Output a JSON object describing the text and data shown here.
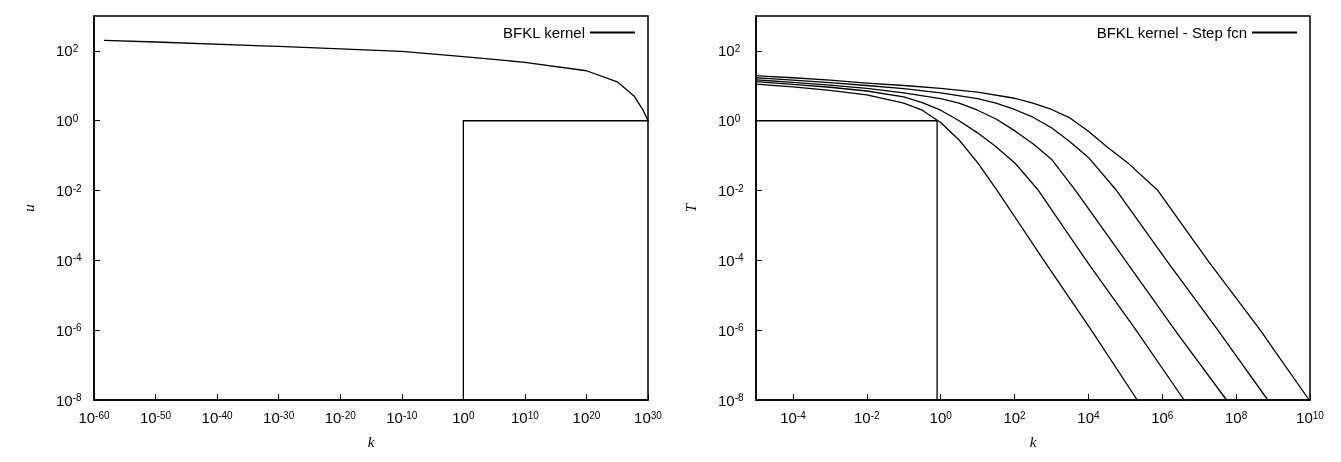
{
  "chart_data": [
    {
      "type": "line",
      "xlabel": "k",
      "ylabel": "u",
      "log": "xy",
      "legend": "top right",
      "marker": "none",
      "line_style": "solid",
      "xlim": [
        1e-60,
        1e+30
      ],
      "ylim": [
        1e-08,
        1000
      ],
      "xticks": [
        {
          "value": 1e-60,
          "label": "10$^{-60}$"
        },
        {
          "value": 1e-50,
          "label": "10$^{-50}$"
        },
        {
          "value": 1e-40,
          "label": "10$^{-40}$"
        },
        {
          "value": 1e-30,
          "label": "10$^{-30}$"
        },
        {
          "value": 1e-20,
          "label": "10$^{-20}$"
        },
        {
          "value": 1e-10,
          "label": "10$^{-10}$"
        },
        {
          "value": 1,
          "label": "10$^{0}$"
        },
        {
          "value": 10000000000.0,
          "label": "10$^{10}$"
        },
        {
          "value": 1e+20,
          "label": "10$^{20}$"
        },
        {
          "value": 1e+30,
          "label": "10$^{30}$"
        }
      ],
      "yticks": [
        {
          "value": 1e-08,
          "label": "10$^{-8}$"
        },
        {
          "value": 1e-06,
          "label": "10$^{-6}$"
        },
        {
          "value": 0.0001,
          "label": "10$^{-4}$"
        },
        {
          "value": 0.01,
          "label": "10$^{-2}$"
        },
        {
          "value": 1,
          "label": "10$^{0}$"
        },
        {
          "value": 100,
          "label": "10$^{2}$"
        }
      ],
      "series": [
        {
          "name": "BFKL kernel",
          "color": "#000000",
          "x": [
            5e-59,
            1e-50,
            1e-30,
            1e-10,
            1,
            10000000000.0,
            1e+20,
            1e+25,
            6e+27,
            1.6e+29,
            1e+30
          ],
          "values": [
            200,
            180,
            134,
            97,
            69,
            47,
            27,
            13,
            5,
            2,
            1
          ]
        },
        {
          "color": "#000000",
          "x": [
            1,
            1,
            1e+30
          ],
          "values": [
            1e-08,
            1,
            1
          ]
        }
      ]
    },
    {
      "type": "line",
      "xlabel": "k",
      "ylabel": "T",
      "log": "xy",
      "legend": "top right",
      "marker": "none",
      "line_style": "solid",
      "xlim": [
        1e-05,
        10000000000.0
      ],
      "ylim": [
        1e-08,
        1000
      ],
      "xticks": [
        {
          "value": 0.0001,
          "label": "10$^{-4}$"
        },
        {
          "value": 0.01,
          "label": "10$^{-2}$"
        },
        {
          "value": 1,
          "label": "10$^{0}$"
        },
        {
          "value": 100,
          "label": "10$^{2}$"
        },
        {
          "value": 10000.0,
          "label": "10$^{4}$"
        },
        {
          "value": 1000000.0,
          "label": "10$^{6}$"
        },
        {
          "value": 100000000.0,
          "label": "10$^{8}$"
        },
        {
          "value": 10000000000.0,
          "label": "10$^{10}$"
        }
      ],
      "yticks": [
        {
          "value": 1e-08,
          "label": "10$^{-8}$"
        },
        {
          "value": 1e-06,
          "label": "10$^{-6}$"
        },
        {
          "value": 0.0001,
          "label": "10$^{-4}$"
        },
        {
          "value": 0.01,
          "label": "10$^{-2}$"
        },
        {
          "value": 1,
          "label": "10$^{0}$"
        },
        {
          "value": 100,
          "label": "10$^{2}$"
        }
      ],
      "series": [
        {
          "name": "BFKL kernel - Step fcn",
          "color": "#000000",
          "x": [
            1e-05,
            0.0001,
            0.001,
            0.01,
            0.1,
            0.316,
            1,
            3.16,
            10,
            34,
            620,
            12000.0,
            210000.0
          ],
          "values": [
            11.2,
            9.3,
            7.4,
            5.5,
            3.2,
            2.0,
            0.89,
            0.28,
            0.063,
            0.01,
            0.0001,
            1e-06,
            1e-08
          ]
        },
        {
          "color": "#000000",
          "x": [
            1e-05,
            0.0001,
            0.001,
            0.01,
            0.1,
            0.316,
            1,
            3.16,
            10,
            31.6,
            100,
            447,
            8700,
            195000.0,
            3900000.0
          ],
          "values": [
            13.2,
            11,
            9.1,
            7.1,
            4.8,
            3.3,
            2.0,
            1.0,
            0.45,
            0.18,
            0.063,
            0.01,
            0.0001,
            1e-06,
            1e-08
          ]
        },
        {
          "color": "#000000",
          "x": [
            1e-05,
            0.0001,
            0.001,
            0.01,
            0.1,
            1,
            3.16,
            10,
            31.6,
            100,
            316,
            1000,
            4500,
            100000.0,
            2200000.0,
            55000000.0
          ],
          "values": [
            14.8,
            12.6,
            10.5,
            8.5,
            6.3,
            4.3,
            3.2,
            2.0,
            1.12,
            0.52,
            0.22,
            0.079,
            0.01,
            0.0001,
            1e-06,
            1e-08
          ]
        },
        {
          "color": "#000000",
          "x": [
            1e-05,
            0.0001,
            0.001,
            0.01,
            0.1,
            1,
            10,
            31.6,
            100,
            316,
            1000,
            3162,
            10000.0,
            58000.0,
            1300000.0,
            32000000.0,
            720000000.0
          ],
          "values": [
            17,
            14.5,
            12.3,
            10.2,
            8.3,
            6.3,
            4.3,
            3.2,
            2.1,
            1.26,
            0.63,
            0.25,
            0.089,
            0.01,
            0.0001,
            1e-06,
            1e-08
          ]
        },
        {
          "color": "#000000",
          "x": [
            1e-05,
            0.0001,
            0.001,
            0.01,
            0.1,
            1,
            10,
            100,
            316,
            1000,
            3162,
            10000.0,
            31623,
            115000.0,
            760000.0,
            17000000.0,
            450000000.0,
            9500000000.0
          ],
          "values": [
            19.5,
            17,
            14.5,
            12,
            10.2,
            8.5,
            6.6,
            4.4,
            3.2,
            2.1,
            1.2,
            0.5,
            0.18,
            0.063,
            0.01,
            0.0001,
            1e-06,
            1e-08
          ]
        },
        {
          "color": "#000000",
          "x": [
            1e-05,
            0.8,
            0.8
          ],
          "values": [
            1,
            1,
            1e-08
          ]
        }
      ]
    }
  ]
}
